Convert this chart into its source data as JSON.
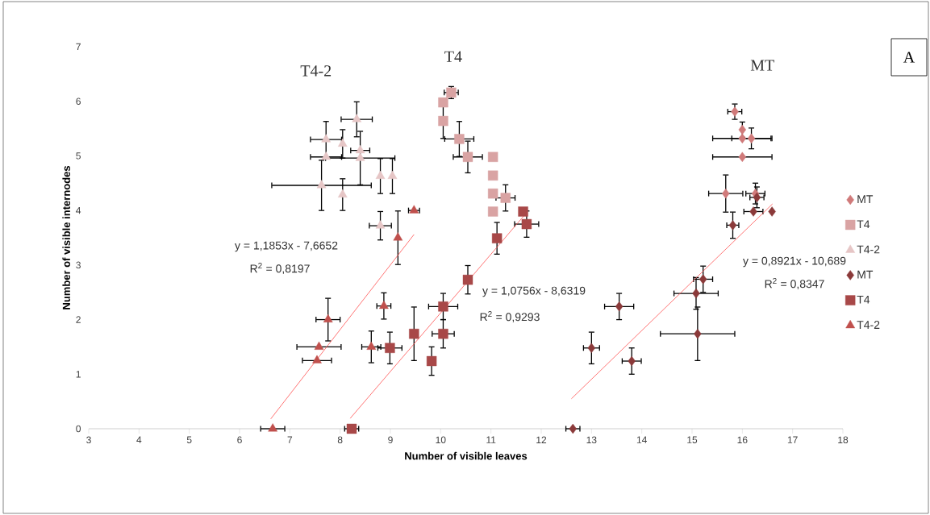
{
  "chart_data": {
    "type": "scatter",
    "xlabel": "Number of visible leaves",
    "ylabel": "Number of visible internodes",
    "xlim": [
      3,
      18
    ],
    "ylim": [
      0,
      7
    ],
    "xticks": [
      3,
      4,
      5,
      6,
      7,
      8,
      9,
      10,
      11,
      12,
      13,
      14,
      15,
      16,
      17,
      18
    ],
    "yticks": [
      0,
      1,
      2,
      3,
      4,
      5,
      6,
      7
    ],
    "grid": false,
    "legend": "right",
    "series": [
      {
        "name": "MT",
        "color": "#d07a7a",
        "marker": "diamond",
        "x": [
          15.85,
          16.0,
          16.0,
          16.18,
          16.0,
          15.67,
          16.26
        ],
        "values": [
          5.81,
          5.48,
          5.32,
          5.32,
          4.98,
          4.31,
          4.31
        ],
        "errors": [
          0.15,
          0.15,
          null,
          0.2,
          null,
          0.35,
          0.2
        ],
        "xerrors": [
          0.15,
          null,
          0.6,
          0.4,
          0.6,
          0.35,
          0.2
        ]
      },
      {
        "name": "T4",
        "color": "#d9a3a3",
        "marker": "square",
        "x": [
          10.21,
          10.05,
          10.05,
          10.37,
          10.54,
          11.04,
          11.04,
          11.04,
          11.29,
          11.04
        ],
        "values": [
          6.16,
          5.98,
          5.64,
          5.31,
          4.98,
          4.98,
          4.64,
          4.31,
          4.23,
          3.98
        ],
        "errors": [
          0.12,
          null,
          0.33,
          0.33,
          0.3,
          null,
          null,
          null,
          0.25,
          null
        ],
        "xerrors": [
          0.15,
          null,
          null,
          0.3,
          0.3,
          null,
          null,
          null,
          0.2,
          null
        ]
      },
      {
        "name": "T4-2",
        "color": "#e6c6c6",
        "marker": "triangle",
        "x": [
          8.33,
          7.72,
          8.05,
          8.4,
          7.72,
          8.4,
          7.63,
          8.05,
          8.8,
          9.04,
          8.8
        ],
        "values": [
          5.67,
          5.3,
          5.22,
          5.1,
          4.98,
          4.96,
          4.46,
          4.29,
          4.63,
          4.63,
          3.72
        ],
        "errors": [
          0.33,
          0.34,
          0.27,
          null,
          null,
          0.5,
          0.47,
          0.3,
          0.33,
          0.33,
          0.27
        ],
        "xerrors": [
          0.32,
          0.32,
          null,
          0.2,
          0.32,
          0.7,
          1.0,
          null,
          null,
          null,
          0.23
        ]
      },
      {
        "name": "MT",
        "color": "#8b3a3a",
        "marker": "diamond",
        "x": [
          16.29,
          16.22,
          16.59,
          15.81,
          15.22,
          15.08,
          15.11,
          13.55,
          13.0,
          13.8,
          12.63
        ],
        "values": [
          4.24,
          3.98,
          3.98,
          3.73,
          2.74,
          2.48,
          1.74,
          2.24,
          1.48,
          1.24,
          0
        ],
        "errors": [
          0.2,
          null,
          null,
          0.25,
          0.25,
          0.3,
          0.5,
          0.25,
          0.3,
          0.25,
          null
        ],
        "xerrors": [
          0.15,
          0.2,
          null,
          0.13,
          0.2,
          0.45,
          0.75,
          0.3,
          0.17,
          0.2,
          0.15
        ]
      },
      {
        "name": "T4",
        "color": "#a84848",
        "marker": "square",
        "x": [
          11.64,
          11.71,
          11.12,
          10.54,
          10.05,
          10.05,
          9.47,
          8.99,
          9.82,
          8.23
        ],
        "values": [
          3.98,
          3.75,
          3.49,
          2.73,
          2.24,
          1.74,
          1.74,
          1.48,
          1.24,
          0
        ],
        "errors": [
          null,
          0.25,
          0.3,
          0.27,
          0.25,
          0.27,
          0.5,
          0.3,
          0.27,
          null
        ],
        "xerrors": [
          null,
          0.25,
          null,
          null,
          0.3,
          0.23,
          null,
          0.25,
          null,
          0.15
        ]
      },
      {
        "name": "T4-2",
        "color": "#c0504d",
        "marker": "triangle",
        "x": [
          9.47,
          9.15,
          7.76,
          8.87,
          7.58,
          7.54,
          8.62,
          6.66
        ],
        "values": [
          4.0,
          3.5,
          2.0,
          2.25,
          1.5,
          1.25,
          1.5,
          0
        ],
        "errors": [
          null,
          0.5,
          0.4,
          0.25,
          null,
          null,
          0.3,
          null
        ],
        "xerrors": [
          0.12,
          null,
          0.25,
          0.15,
          0.45,
          0.3,
          0.2,
          0.25
        ]
      },
      {
        "type": "line",
        "color": "#ff5050",
        "marker": "none",
        "x": [
          6.62,
          9.47
        ],
        "values": [
          0.18,
          3.56
        ]
      },
      {
        "type": "line",
        "color": "#ff5050",
        "marker": "none",
        "x": [
          8.2,
          11.7
        ],
        "values": [
          0.19,
          3.95
        ]
      },
      {
        "type": "line",
        "color": "#ff5050",
        "marker": "none",
        "x": [
          12.6,
          16.6
        ],
        "values": [
          0.55,
          4.12
        ]
      }
    ],
    "annotations": [
      {
        "text": "T4-2",
        "x": 7.52,
        "y": 6.56
      },
      {
        "text": "T4",
        "x": 10.25,
        "y": 6.82
      },
      {
        "text": "MT",
        "x": 16.4,
        "y": 6.66
      },
      "y = 1,1853x - 7,6652",
      "R$^{2}$ = 0,8197",
      "y = 1,0756x - 8,6319",
      "R$^{2}$ = 0,9293",
      "y = 0,8921x - 10,689",
      "R$^{2}$ = 0,8347",
      "A"
    ]
  }
}
